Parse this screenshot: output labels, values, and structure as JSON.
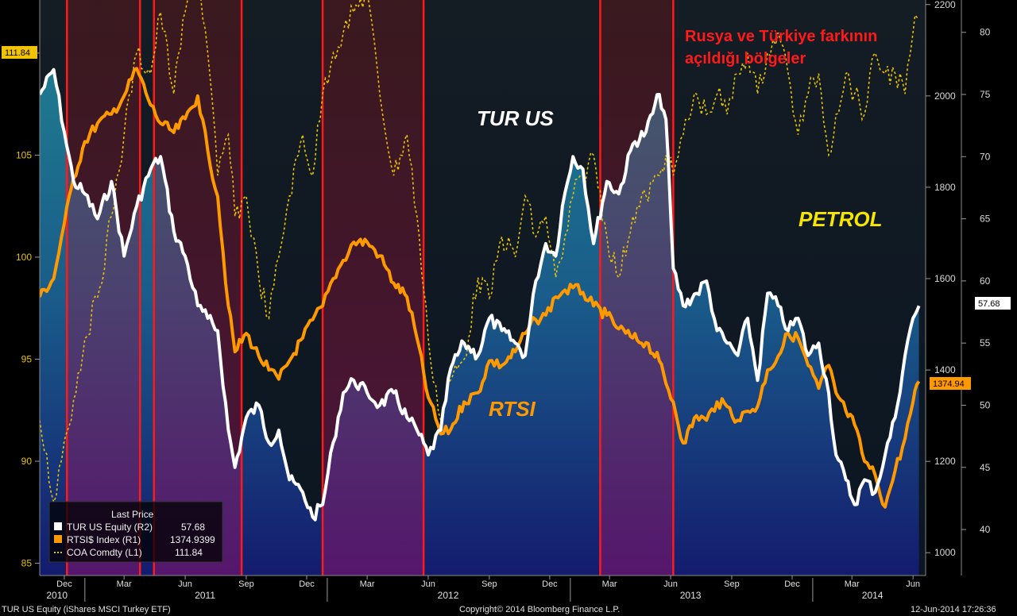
{
  "chart_data": {
    "type": "line",
    "title": "",
    "x_axis": {
      "months": [
        "Dec",
        "Mar",
        "Jun",
        "Sep",
        "Dec",
        "Mar",
        "Jun",
        "Sep",
        "Dec",
        "Mar",
        "Jun",
        "Sep",
        "Dec",
        "Mar",
        "Jun"
      ],
      "years": [
        "2010",
        "2011",
        "2012",
        "2013",
        "2014"
      ]
    },
    "left_axis": {
      "ticks": [
        "85",
        "90",
        "95",
        "100",
        "105",
        "110"
      ],
      "range": [
        84.4,
        112.6
      ],
      "series": "COA Comdty (L1)"
    },
    "right_axis_1": {
      "ticks": [
        "1000",
        "1200",
        "1400",
        "1600",
        "1800",
        "2000",
        "2200"
      ],
      "range": [
        950,
        2210
      ],
      "series": "RTSI$ Index (R1)"
    },
    "right_axis_2": {
      "ticks": [
        "40",
        "45",
        "50",
        "55",
        "60",
        "65",
        "70",
        "75",
        "80"
      ],
      "range": [
        36.3,
        82.6
      ],
      "series": "TUR US Equity (R2)"
    },
    "series": [
      {
        "name": "TUR US Equity",
        "axis": "R2",
        "color": "#ffffff",
        "x": [
          "2010-10-25",
          "2010-11-15",
          "2010-12-01",
          "2010-12-15",
          "2011-01-01",
          "2011-01-20",
          "2011-02-10",
          "2011-03-01",
          "2011-03-20",
          "2011-04-10",
          "2011-04-25",
          "2011-05-15",
          "2011-06-01",
          "2011-06-20",
          "2011-07-05",
          "2011-07-20",
          "2011-08-05",
          "2011-08-15",
          "2011-09-01",
          "2011-09-20",
          "2011-10-05",
          "2011-10-20",
          "2011-11-05",
          "2011-11-25",
          "2011-12-10",
          "2011-12-25",
          "2012-01-10",
          "2012-01-25",
          "2012-02-10",
          "2012-03-01",
          "2012-03-20",
          "2012-04-10",
          "2012-04-30",
          "2012-05-15",
          "2012-06-01",
          "2012-06-20",
          "2012-07-05",
          "2012-07-25",
          "2012-08-15",
          "2012-09-01",
          "2012-09-20",
          "2012-10-10",
          "2012-10-25",
          "2012-11-10",
          "2012-11-25",
          "2012-12-10",
          "2012-12-20",
          "2013-01-05",
          "2013-01-20",
          "2013-02-05",
          "2013-02-25",
          "2013-03-15",
          "2013-04-05",
          "2013-04-25",
          "2013-05-15",
          "2013-05-25",
          "2013-06-05",
          "2013-06-20",
          "2013-07-10",
          "2013-07-25",
          "2013-08-10",
          "2013-08-25",
          "2013-09-10",
          "2013-09-25",
          "2013-10-10",
          "2013-10-25",
          "2013-11-10",
          "2013-11-25",
          "2013-12-10",
          "2013-12-25",
          "2014-01-10",
          "2014-01-25",
          "2014-02-05",
          "2014-02-20",
          "2014-03-05",
          "2014-03-20",
          "2014-04-05",
          "2014-04-20",
          "2014-05-05",
          "2014-05-20",
          "2014-06-01",
          "2014-06-10"
        ],
        "values": [
          75,
          77,
          72,
          68,
          67,
          65,
          68,
          62,
          66,
          69,
          70,
          64,
          62,
          58,
          57,
          56,
          48,
          45,
          49,
          50,
          47,
          48,
          44,
          43,
          41,
          42,
          47,
          51,
          52,
          51,
          50,
          51,
          49,
          48,
          46,
          48,
          53,
          55,
          54,
          57,
          56,
          55,
          54,
          60,
          63,
          62,
          66,
          70,
          69,
          63,
          68,
          67,
          71,
          72,
          75,
          73,
          61,
          58,
          59,
          60,
          56,
          55,
          54,
          57,
          52,
          59,
          58,
          56,
          57,
          54,
          55,
          51,
          46,
          44,
          42,
          44,
          43,
          46,
          49,
          54,
          57,
          58
        ]
      },
      {
        "name": "RTSI$ Index",
        "axis": "R1",
        "color": "#ff9900",
        "x": [
          "2010-10-25",
          "2010-11-15",
          "2010-12-01",
          "2010-12-15",
          "2011-01-01",
          "2011-01-20",
          "2011-02-10",
          "2011-03-01",
          "2011-03-20",
          "2011-04-10",
          "2011-04-25",
          "2011-05-15",
          "2011-06-01",
          "2011-06-20",
          "2011-07-05",
          "2011-07-20",
          "2011-08-05",
          "2011-08-15",
          "2011-09-01",
          "2011-09-20",
          "2011-10-05",
          "2011-10-20",
          "2011-11-05",
          "2011-11-25",
          "2011-12-10",
          "2011-12-25",
          "2012-01-10",
          "2012-01-25",
          "2012-02-10",
          "2012-03-01",
          "2012-03-20",
          "2012-04-10",
          "2012-04-30",
          "2012-05-15",
          "2012-06-01",
          "2012-06-20",
          "2012-07-05",
          "2012-07-25",
          "2012-08-15",
          "2012-09-01",
          "2012-09-20",
          "2012-10-10",
          "2012-10-25",
          "2012-11-10",
          "2012-11-25",
          "2012-12-10",
          "2012-12-20",
          "2013-01-05",
          "2013-01-20",
          "2013-02-05",
          "2013-02-25",
          "2013-03-15",
          "2013-04-05",
          "2013-04-25",
          "2013-05-15",
          "2013-05-25",
          "2013-06-05",
          "2013-06-20",
          "2013-07-10",
          "2013-07-25",
          "2013-08-10",
          "2013-08-25",
          "2013-09-10",
          "2013-09-25",
          "2013-10-10",
          "2013-10-25",
          "2013-11-10",
          "2013-11-25",
          "2013-12-10",
          "2013-12-25",
          "2014-01-10",
          "2014-01-25",
          "2014-02-05",
          "2014-02-20",
          "2014-03-05",
          "2014-03-20",
          "2014-04-05",
          "2014-04-20",
          "2014-05-05",
          "2014-05-20",
          "2014-06-01",
          "2014-06-10"
        ],
        "values": [
          1560,
          1600,
          1720,
          1820,
          1900,
          1940,
          1960,
          2000,
          2060,
          1980,
          1940,
          1920,
          1950,
          2000,
          1880,
          1780,
          1540,
          1440,
          1480,
          1430,
          1400,
          1380,
          1420,
          1470,
          1510,
          1540,
          1600,
          1640,
          1680,
          1680,
          1650,
          1590,
          1560,
          1470,
          1340,
          1260,
          1270,
          1330,
          1350,
          1420,
          1410,
          1440,
          1480,
          1510,
          1520,
          1560,
          1570,
          1580,
          1570,
          1540,
          1520,
          1490,
          1470,
          1460,
          1420,
          1370,
          1330,
          1240,
          1300,
          1290,
          1330,
          1320,
          1290,
          1310,
          1320,
          1400,
          1430,
          1480,
          1470,
          1410,
          1360,
          1410,
          1350,
          1310,
          1280,
          1200,
          1170,
          1100,
          1180,
          1250,
          1330,
          1374.9399
        ]
      },
      {
        "name": "COA Comdty",
        "axis": "L1",
        "color": "#e8c200",
        "dashed": true,
        "x": [
          "2010-10-25",
          "2010-11-15",
          "2010-12-01",
          "2010-12-15",
          "2011-01-01",
          "2011-01-20",
          "2011-02-10",
          "2011-03-01",
          "2011-03-20",
          "2011-04-10",
          "2011-04-25",
          "2011-05-15",
          "2011-06-01",
          "2011-06-20",
          "2011-07-05",
          "2011-07-20",
          "2011-08-05",
          "2011-08-15",
          "2011-09-01",
          "2011-09-20",
          "2011-10-05",
          "2011-10-20",
          "2011-11-05",
          "2011-11-25",
          "2011-12-10",
          "2011-12-25",
          "2012-01-10",
          "2012-01-25",
          "2012-02-10",
          "2012-03-01",
          "2012-03-20",
          "2012-04-10",
          "2012-04-30",
          "2012-05-15",
          "2012-06-01",
          "2012-06-20",
          "2012-07-05",
          "2012-07-25",
          "2012-08-15",
          "2012-09-01",
          "2012-09-20",
          "2012-10-10",
          "2012-10-25",
          "2012-11-10",
          "2012-11-25",
          "2012-12-10",
          "2012-12-20",
          "2013-01-05",
          "2013-01-20",
          "2013-02-05",
          "2013-02-25",
          "2013-03-15",
          "2013-04-05",
          "2013-04-25",
          "2013-05-15",
          "2013-05-25",
          "2013-06-05",
          "2013-06-20",
          "2013-07-10",
          "2013-07-25",
          "2013-08-10",
          "2013-08-25",
          "2013-09-10",
          "2013-09-25",
          "2013-10-10",
          "2013-10-25",
          "2013-11-10",
          "2013-11-25",
          "2013-12-10",
          "2013-12-25",
          "2014-01-10",
          "2014-01-25",
          "2014-02-05",
          "2014-02-20",
          "2014-03-05",
          "2014-03-20",
          "2014-04-05",
          "2014-04-20",
          "2014-05-05",
          "2014-05-20",
          "2014-06-01",
          "2014-06-10"
        ],
        "values": [
          92,
          88,
          91,
          93,
          96,
          98,
          102,
          106,
          110,
          109,
          112,
          108,
          112,
          114,
          110,
          104,
          106,
          102,
          103,
          99,
          97,
          100,
          103,
          106,
          104,
          108,
          110,
          111,
          112,
          113,
          108,
          104,
          106,
          102,
          96,
          92,
          94,
          95,
          99,
          98,
          101,
          100,
          103,
          101,
          102,
          99,
          100,
          103,
          104,
          105,
          101,
          99,
          102,
          103,
          104,
          105,
          104,
          106,
          108,
          107,
          108,
          107,
          109,
          110,
          108,
          110,
          111,
          109,
          106,
          108,
          109,
          105,
          107,
          109,
          108,
          107,
          110,
          109,
          109,
          108,
          111,
          111.84
        ]
      }
    ],
    "annotations": {
      "title_note": [
        "Rusya ve Türkiye farkının",
        "açıldığı bölgeler"
      ],
      "labels": [
        "TUR US",
        "RTSI",
        "PETROL"
      ],
      "highlight_regions": [
        [
          "2010-12-05",
          "2011-03-25"
        ],
        [
          "2011-04-15",
          "2011-08-25"
        ],
        [
          "2011-12-25",
          "2012-05-25"
        ],
        [
          "2013-02-15",
          "2013-06-05"
        ]
      ]
    },
    "last_price_tags": {
      "left": "111.84",
      "right_1": "1374.94",
      "right_2": "57.68"
    },
    "legend": {
      "title": "Last Price",
      "rows": [
        {
          "label": "TUR US Equity  (R2)",
          "value": "57.68",
          "color": "#ffffff"
        },
        {
          "label": "RTSI$ Index  (R1)",
          "value": "1374.9399",
          "color": "#ff9900"
        },
        {
          "label": "COA Comdty  (L1)",
          "value": "111.84",
          "color": "#e8c200"
        }
      ]
    },
    "x_range": [
      "2010-10-25",
      "2014-06-20"
    ]
  },
  "footer": {
    "left": "TUR US Equity (iShares MSCI Turkey ETF)",
    "center": "Copyright© 2014 Bloomberg Finance L.P.",
    "right": "12-Jun-2014 17:26:36"
  }
}
